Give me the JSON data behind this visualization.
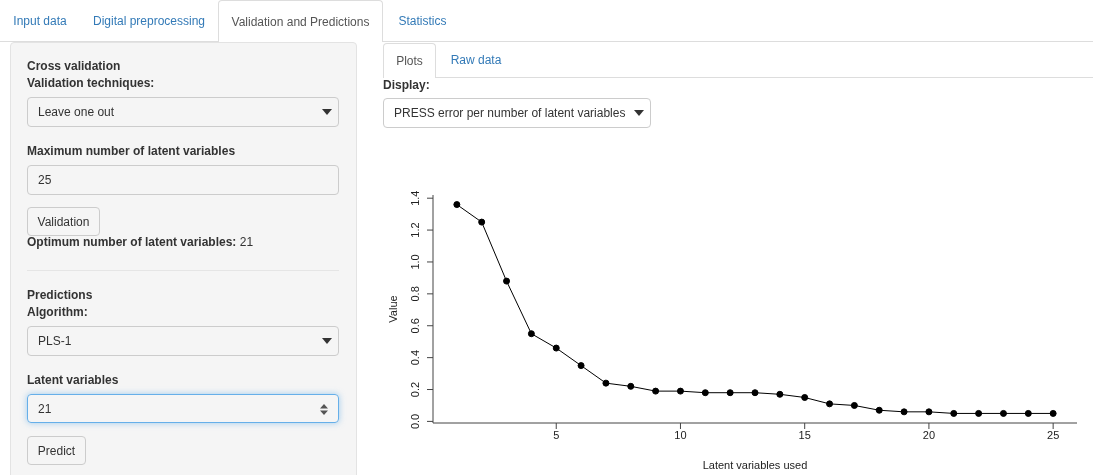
{
  "chart_data": [
    {
      "type": "other",
      "annotations": [
        "Input data",
        "Digital preprocessing",
        "Validation and Predictions",
        "Statistics",
        "Cross validation",
        "Validation techniques:",
        "Leave one out",
        "Maximum number of latent variables",
        "25",
        "Validation",
        "Optimum number of latent variables:",
        "21",
        "Predictions",
        "Algorithm:",
        "PLS-1",
        "Latent variables",
        "21",
        "Predict",
        "Plots",
        "Raw data",
        "Display:",
        "PRESS error per number of latent variables"
      ]
    },
    {
      "type": "line",
      "xlabel": "Latent variables used",
      "ylabel": "Value",
      "marker": "circle",
      "x": [
        1,
        2,
        3,
        4,
        5,
        6,
        7,
        8,
        9,
        10,
        11,
        12,
        13,
        14,
        15,
        16,
        17,
        18,
        19,
        20,
        21,
        22,
        23,
        24,
        25
      ],
      "series": [
        {
          "color": "#000000",
          "values": [
            1.36,
            1.25,
            0.88,
            0.55,
            0.46,
            0.35,
            0.24,
            0.22,
            0.19,
            0.19,
            0.18,
            0.18,
            0.18,
            0.17,
            0.15,
            0.11,
            0.1,
            0.07,
            0.06,
            0.06,
            0.05,
            0.05,
            0.05,
            0.05,
            0.05
          ]
        }
      ],
      "xlim": [
        0.04,
        25.96
      ],
      "ylim": [
        -0.01,
        1.42
      ],
      "xticks": [
        5,
        10,
        15,
        20,
        25
      ],
      "yticks": [
        {
          "value": 0,
          "label": "0.0"
        },
        0.2,
        0.4,
        0.6,
        0.8,
        {
          "value": 1,
          "label": "1.0"
        },
        1.2,
        1.4
      ]
    }
  ]
}
